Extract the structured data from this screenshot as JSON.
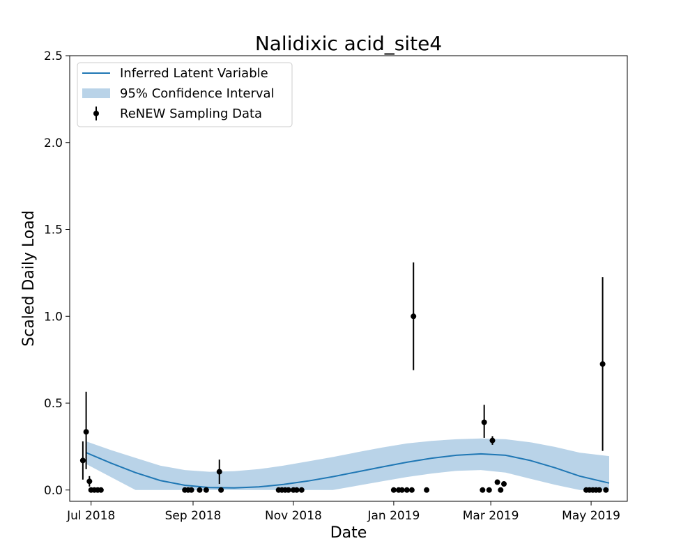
{
  "chart_data": {
    "type": "line",
    "title": "Nalidixic acid_site4",
    "xlabel": "Date",
    "ylabel": "Scaled Daily Load",
    "xlim": [
      "2018-06-18",
      "2019-05-23"
    ],
    "ylim": [
      -0.065,
      2.5
    ],
    "x_ticks": [
      {
        "date": "2018-07-01",
        "label": "Jul 2018"
      },
      {
        "date": "2018-09-01",
        "label": "Sep 2018"
      },
      {
        "date": "2018-11-01",
        "label": "Nov 2018"
      },
      {
        "date": "2019-01-01",
        "label": "Jan 2019"
      },
      {
        "date": "2019-03-01",
        "label": "Mar 2019"
      },
      {
        "date": "2019-05-01",
        "label": "May 2019"
      }
    ],
    "y_ticks": [
      0.0,
      0.5,
      1.0,
      1.5,
      2.0,
      2.5
    ],
    "y_tick_labels": [
      "0.0",
      "0.5",
      "1.0",
      "1.5",
      "2.0",
      "2.5"
    ],
    "legend": {
      "position": "top-left",
      "entries": [
        "Inferred Latent Variable",
        "95% Confidence Interval",
        "ReNEW Sampling Data"
      ]
    },
    "colors": {
      "line": "#1f77b4",
      "band": "#b9d3e8",
      "points": "#000000"
    },
    "series": [
      {
        "name": "Inferred Latent Variable",
        "type": "line",
        "points": [
          {
            "x": "2018-06-28",
            "y": 0.215
          },
          {
            "x": "2018-07-13",
            "y": 0.155
          },
          {
            "x": "2018-07-28",
            "y": 0.1
          },
          {
            "x": "2018-08-12",
            "y": 0.055
          },
          {
            "x": "2018-08-27",
            "y": 0.027
          },
          {
            "x": "2018-09-11",
            "y": 0.014
          },
          {
            "x": "2018-09-26",
            "y": 0.012
          },
          {
            "x": "2018-10-11",
            "y": 0.018
          },
          {
            "x": "2018-10-26",
            "y": 0.032
          },
          {
            "x": "2018-11-10",
            "y": 0.052
          },
          {
            "x": "2018-11-25",
            "y": 0.077
          },
          {
            "x": "2018-12-10",
            "y": 0.105
          },
          {
            "x": "2018-12-25",
            "y": 0.133
          },
          {
            "x": "2019-01-09",
            "y": 0.16
          },
          {
            "x": "2019-01-24",
            "y": 0.183
          },
          {
            "x": "2019-02-08",
            "y": 0.2
          },
          {
            "x": "2019-02-23",
            "y": 0.208
          },
          {
            "x": "2019-03-10",
            "y": 0.2
          },
          {
            "x": "2019-03-25",
            "y": 0.17
          },
          {
            "x": "2019-04-09",
            "y": 0.128
          },
          {
            "x": "2019-04-24",
            "y": 0.08
          },
          {
            "x": "2019-05-12",
            "y": 0.04
          }
        ]
      },
      {
        "name": "95% Confidence Interval",
        "type": "band",
        "points": [
          {
            "x": "2018-06-28",
            "lower": 0.15,
            "upper": 0.28
          },
          {
            "x": "2018-07-13",
            "lower": 0.075,
            "upper": 0.23
          },
          {
            "x": "2018-07-28",
            "lower": 0.0,
            "upper": 0.185
          },
          {
            "x": "2018-08-12",
            "lower": 0.0,
            "upper": 0.14
          },
          {
            "x": "2018-08-27",
            "lower": 0.0,
            "upper": 0.115
          },
          {
            "x": "2018-09-11",
            "lower": 0.0,
            "upper": 0.105
          },
          {
            "x": "2018-09-26",
            "lower": 0.0,
            "upper": 0.108
          },
          {
            "x": "2018-10-11",
            "lower": 0.0,
            "upper": 0.12
          },
          {
            "x": "2018-10-26",
            "lower": 0.0,
            "upper": 0.14
          },
          {
            "x": "2018-11-10",
            "lower": 0.0,
            "upper": 0.165
          },
          {
            "x": "2018-11-25",
            "lower": 0.0,
            "upper": 0.19
          },
          {
            "x": "2018-12-10",
            "lower": 0.025,
            "upper": 0.218
          },
          {
            "x": "2018-12-25",
            "lower": 0.05,
            "upper": 0.245
          },
          {
            "x": "2019-01-09",
            "lower": 0.075,
            "upper": 0.268
          },
          {
            "x": "2019-01-24",
            "lower": 0.095,
            "upper": 0.283
          },
          {
            "x": "2019-02-08",
            "lower": 0.11,
            "upper": 0.292
          },
          {
            "x": "2019-02-23",
            "lower": 0.115,
            "upper": 0.297
          },
          {
            "x": "2019-03-10",
            "lower": 0.1,
            "upper": 0.292
          },
          {
            "x": "2019-03-25",
            "lower": 0.065,
            "upper": 0.275
          },
          {
            "x": "2019-04-09",
            "lower": 0.03,
            "upper": 0.248
          },
          {
            "x": "2019-04-24",
            "lower": 0.0,
            "upper": 0.215
          },
          {
            "x": "2019-05-12",
            "lower": 0.0,
            "upper": 0.195
          }
        ]
      },
      {
        "name": "ReNEW Sampling Data",
        "type": "errorbar",
        "points": [
          {
            "x": "2018-06-26",
            "y": 0.17,
            "err_low": 0.06,
            "err_high": 0.28
          },
          {
            "x": "2018-06-28",
            "y": 0.335,
            "err_low": 0.12,
            "err_high": 0.565
          },
          {
            "x": "2018-06-30",
            "y": 0.05,
            "err_low": 0.02,
            "err_high": 0.08
          },
          {
            "x": "2018-07-01",
            "y": 0.0
          },
          {
            "x": "2018-07-03",
            "y": 0.0
          },
          {
            "x": "2018-07-05",
            "y": 0.0
          },
          {
            "x": "2018-07-07",
            "y": 0.0
          },
          {
            "x": "2018-08-27",
            "y": 0.0
          },
          {
            "x": "2018-08-29",
            "y": 0.0
          },
          {
            "x": "2018-08-31",
            "y": 0.0
          },
          {
            "x": "2018-09-05",
            "y": 0.0
          },
          {
            "x": "2018-09-09",
            "y": 0.0
          },
          {
            "x": "2018-09-17",
            "y": 0.105,
            "err_low": 0.035,
            "err_high": 0.175
          },
          {
            "x": "2018-09-18",
            "y": 0.0
          },
          {
            "x": "2018-10-23",
            "y": 0.0
          },
          {
            "x": "2018-10-25",
            "y": 0.0
          },
          {
            "x": "2018-10-27",
            "y": 0.0
          },
          {
            "x": "2018-10-29",
            "y": 0.0
          },
          {
            "x": "2018-11-01",
            "y": 0.0
          },
          {
            "x": "2018-11-03",
            "y": 0.0
          },
          {
            "x": "2018-11-06",
            "y": 0.0
          },
          {
            "x": "2019-01-01",
            "y": 0.0
          },
          {
            "x": "2019-01-04",
            "y": 0.0
          },
          {
            "x": "2019-01-06",
            "y": 0.0
          },
          {
            "x": "2019-01-09",
            "y": 0.0
          },
          {
            "x": "2019-01-12",
            "y": 0.0
          },
          {
            "x": "2019-01-13",
            "y": 1.0,
            "err_low": 0.69,
            "err_high": 1.31
          },
          {
            "x": "2019-01-21",
            "y": 0.0
          },
          {
            "x": "2019-02-24",
            "y": 0.0
          },
          {
            "x": "2019-02-25",
            "y": 0.39,
            "err_low": 0.3,
            "err_high": 0.49
          },
          {
            "x": "2019-02-28",
            "y": 0.0
          },
          {
            "x": "2019-03-02",
            "y": 0.285,
            "err_low": 0.26,
            "err_high": 0.31
          },
          {
            "x": "2019-03-05",
            "y": 0.045
          },
          {
            "x": "2019-03-07",
            "y": 0.0
          },
          {
            "x": "2019-03-09",
            "y": 0.035
          },
          {
            "x": "2019-04-28",
            "y": 0.0
          },
          {
            "x": "2019-04-30",
            "y": 0.0
          },
          {
            "x": "2019-05-02",
            "y": 0.0
          },
          {
            "x": "2019-05-04",
            "y": 0.0
          },
          {
            "x": "2019-05-06",
            "y": 0.0
          },
          {
            "x": "2019-05-08",
            "y": 0.725,
            "err_low": 0.225,
            "err_high": 1.225
          },
          {
            "x": "2019-05-10",
            "y": 0.0
          }
        ]
      }
    ]
  }
}
